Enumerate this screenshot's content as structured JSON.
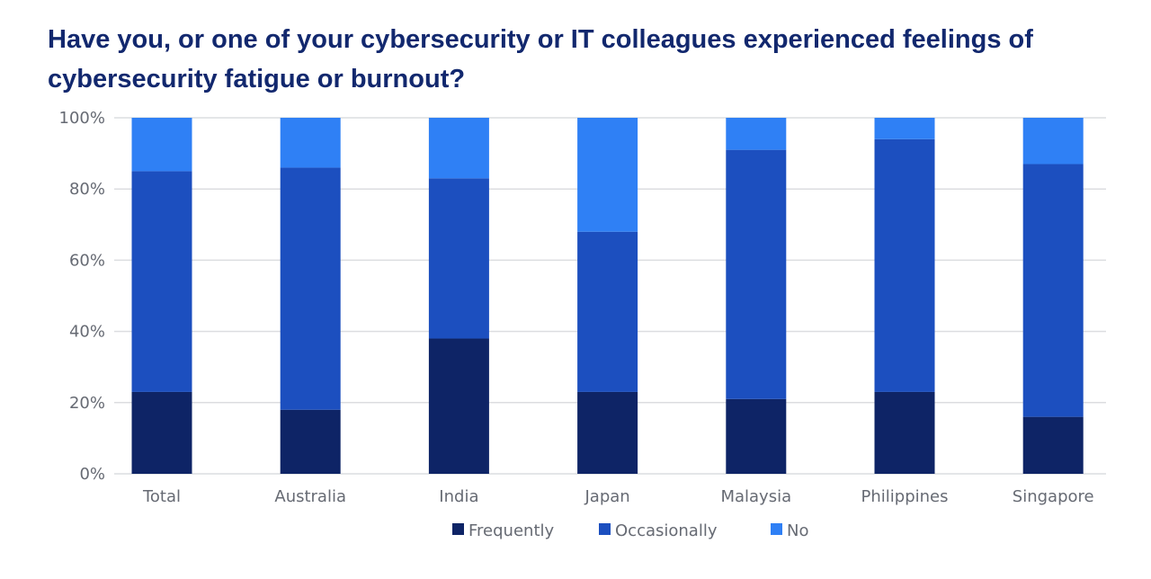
{
  "chart_data": {
    "type": "bar",
    "stacked": true,
    "title": "Have you, or one of your cybersecurity or IT colleagues experienced feelings of cybersecurity fatigue or burnout?",
    "xlabel": "",
    "ylabel": "",
    "ylim": [
      0,
      100
    ],
    "yticks": [
      "0%",
      "20%",
      "40%",
      "60%",
      "80%",
      "100%"
    ],
    "grid": true,
    "legend_position": "bottom",
    "categories": [
      "Total",
      "Australia",
      "India",
      "Japan",
      "Malaysia",
      "Philippines",
      "Singapore"
    ],
    "series": [
      {
        "name": "Frequently",
        "color": "#0e2466",
        "values": [
          23,
          18,
          38,
          23,
          21,
          23,
          16
        ]
      },
      {
        "name": "Occasionally",
        "color": "#1c4fbf",
        "values": [
          62,
          68,
          45,
          45,
          70,
          71,
          71
        ]
      },
      {
        "name": "No",
        "color": "#2f80f5",
        "values": [
          15,
          14,
          17,
          32,
          9,
          6,
          13
        ]
      }
    ]
  }
}
